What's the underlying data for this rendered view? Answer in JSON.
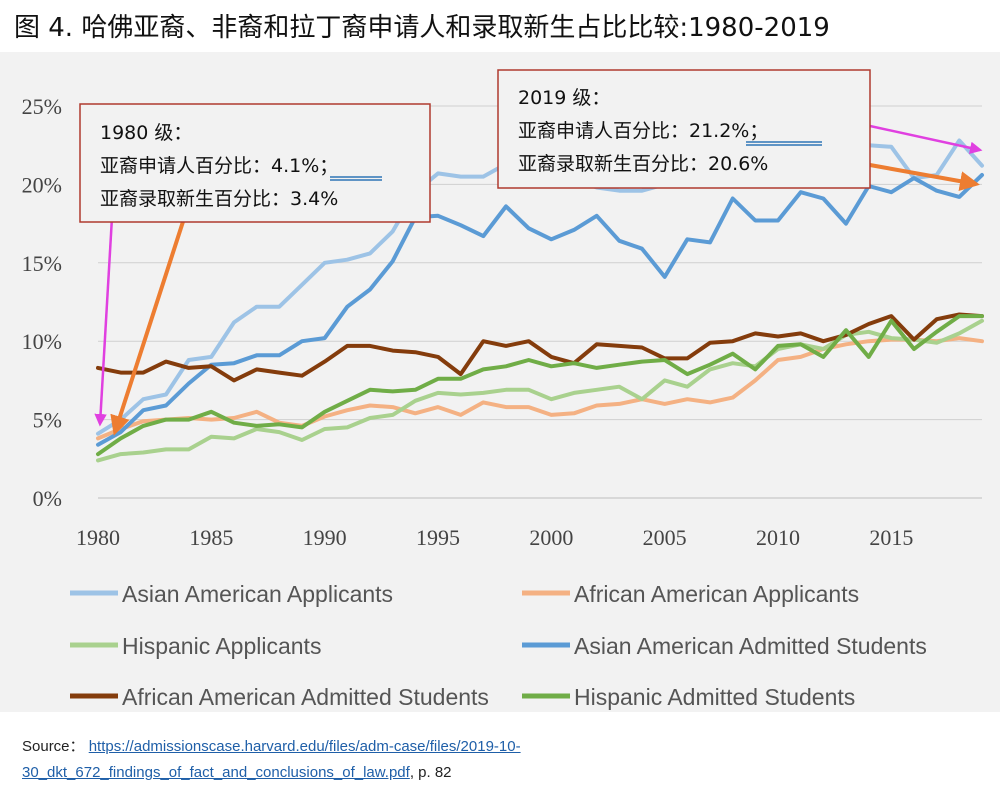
{
  "title": "图 4.  哈佛亚裔、非裔和拉丁裔申请人和录取新生占比比较:1980-2019",
  "chart_data": {
    "type": "line",
    "x_ticks": [
      1980,
      1985,
      1990,
      1995,
      2000,
      2005,
      2010,
      2015
    ],
    "y_ticks": [
      "0%",
      "5%",
      "10%",
      "15%",
      "20%",
      "25%"
    ],
    "xlim": [
      1980,
      2019
    ],
    "ylim": [
      0,
      25
    ],
    "grid": true,
    "legend_position": "bottom",
    "x": [
      1980,
      1981,
      1982,
      1983,
      1984,
      1985,
      1986,
      1987,
      1988,
      1989,
      1990,
      1991,
      1992,
      1993,
      1994,
      1995,
      1996,
      1997,
      1998,
      1999,
      2000,
      2001,
      2002,
      2003,
      2004,
      2005,
      2006,
      2007,
      2008,
      2009,
      2010,
      2011,
      2012,
      2013,
      2014,
      2015,
      2016,
      2017,
      2018,
      2019
    ],
    "series": [
      {
        "name": "Asian American Applicants",
        "color": "#9dc3e6",
        "values": [
          4.1,
          5.0,
          6.3,
          6.6,
          8.8,
          9.0,
          11.2,
          12.2,
          12.2,
          13.6,
          15.0,
          15.2,
          15.6,
          17.0,
          19.5,
          20.7,
          20.5,
          20.5,
          21.3,
          20.6,
          20.1,
          20.3,
          19.8,
          19.6,
          19.6,
          20.0,
          20.6,
          20.9,
          21.3,
          21.0,
          20.6,
          21.5,
          21.8,
          22.2,
          22.5,
          22.4,
          20.4,
          20.6,
          22.8,
          21.2
        ]
      },
      {
        "name": "African American Applicants",
        "color": "#f4b183",
        "values": [
          3.8,
          4.4,
          4.9,
          5.0,
          5.1,
          5.0,
          5.1,
          5.5,
          4.8,
          4.6,
          5.2,
          5.6,
          5.9,
          5.8,
          5.4,
          5.8,
          5.3,
          6.1,
          5.8,
          5.8,
          5.3,
          5.4,
          5.9,
          6.0,
          6.3,
          6.0,
          6.3,
          6.1,
          6.4,
          7.5,
          8.8,
          9.0,
          9.5,
          9.8,
          10.0,
          10.1,
          10.1,
          10.0,
          10.2,
          10.0
        ]
      },
      {
        "name": "Hispanic Applicants",
        "color": "#a9d18e",
        "values": [
          2.4,
          2.8,
          2.9,
          3.1,
          3.1,
          3.9,
          3.8,
          4.4,
          4.2,
          3.7,
          4.4,
          4.5,
          5.1,
          5.3,
          6.2,
          6.7,
          6.6,
          6.7,
          6.9,
          6.9,
          6.3,
          6.7,
          6.9,
          7.1,
          6.3,
          7.5,
          7.1,
          8.2,
          8.6,
          8.4,
          9.5,
          9.8,
          9.5,
          10.4,
          10.6,
          10.2,
          10.1,
          9.9,
          10.5,
          11.3
        ]
      },
      {
        "name": "Asian American Admitted Students",
        "color": "#5b9bd5",
        "values": [
          3.4,
          4.2,
          5.6,
          5.9,
          7.3,
          8.5,
          8.6,
          9.1,
          9.1,
          10.0,
          10.2,
          12.2,
          13.3,
          15.1,
          17.9,
          18.0,
          17.4,
          16.7,
          18.6,
          17.2,
          16.5,
          17.1,
          18.0,
          16.4,
          15.9,
          14.1,
          16.5,
          16.3,
          19.1,
          17.7,
          17.7,
          19.5,
          19.1,
          17.5,
          19.9,
          19.5,
          20.4,
          19.6,
          19.2,
          20.6
        ]
      },
      {
        "name": "African American Admitted Students",
        "color": "#843c0c",
        "values": [
          8.3,
          8.0,
          8.0,
          8.7,
          8.3,
          8.4,
          7.5,
          8.2,
          8.0,
          7.8,
          8.7,
          9.7,
          9.7,
          9.4,
          9.3,
          9.0,
          7.9,
          10.0,
          9.7,
          10.0,
          9.0,
          8.6,
          9.8,
          9.7,
          9.6,
          8.9,
          8.9,
          9.9,
          10.0,
          10.5,
          10.3,
          10.5,
          10.0,
          10.4,
          11.1,
          11.6,
          10.1,
          11.4,
          11.7,
          11.6
        ]
      },
      {
        "name": "Hispanic Admitted Students",
        "color": "#70ad47",
        "values": [
          2.8,
          3.8,
          4.6,
          5.0,
          5.0,
          5.5,
          4.8,
          4.6,
          4.7,
          4.5,
          5.5,
          6.2,
          6.9,
          6.8,
          6.9,
          7.6,
          7.6,
          8.2,
          8.4,
          8.8,
          8.4,
          8.6,
          8.3,
          8.5,
          8.7,
          8.8,
          7.9,
          8.5,
          9.2,
          8.2,
          9.7,
          9.8,
          9.0,
          10.7,
          9.0,
          11.3,
          9.5,
          10.6,
          11.6,
          11.6
        ]
      }
    ],
    "annotations": [
      {
        "lines": [
          "1980 级：",
          "亚裔申请人百分比：4.1%；",
          "亚裔录取新生百分比：3.4%"
        ],
        "highlight": "4.1%；"
      },
      {
        "lines": [
          "2019 级：",
          "亚裔申请人百分比：21.2%；",
          "亚裔录取新生百分比：20.6%"
        ],
        "highlight": "21.2%；"
      }
    ]
  },
  "source": {
    "label": "Source：",
    "url_line1": "https://admissionscase.harvard.edu/files/adm-case/files/2019-10-",
    "url_line2": "30_dkt_672_findings_of_fact_and_conclusions_of_law.pdf",
    "suffix": ", p. 82"
  },
  "colors": {
    "pink_arrow": "#e040e0",
    "orange_arrow": "#ed7d31",
    "box_border": "#b03a2e",
    "box_fill": "#f2f2f2",
    "highlight_underline": "#2e75b6"
  }
}
